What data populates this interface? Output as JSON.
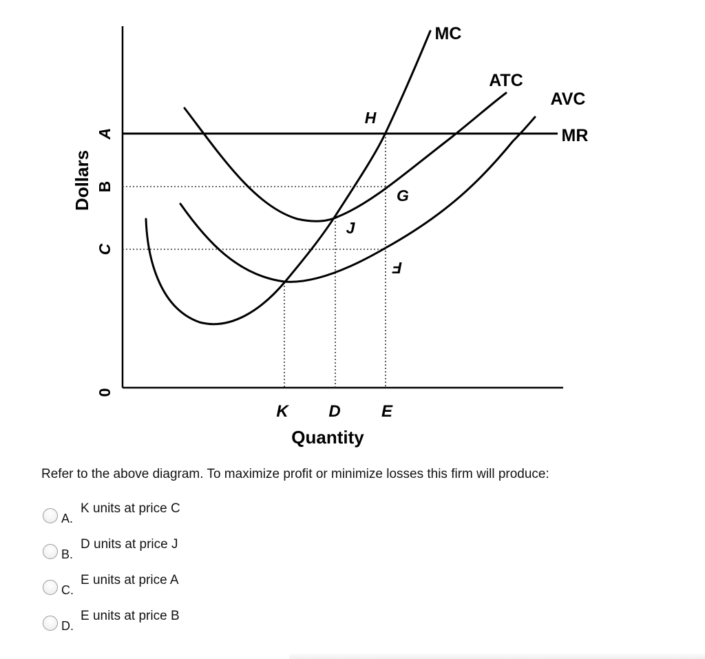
{
  "diagram": {
    "y_axis_label": "Dollars",
    "x_axis_label": "Quantity",
    "price_labels": {
      "a": "A",
      "b": "B",
      "c": "C",
      "zero": "0"
    },
    "quantity_labels": {
      "k": "K",
      "d": "D",
      "e": "E"
    },
    "curve_labels": {
      "mc": "MC",
      "atc": "ATC",
      "avc": "AVC",
      "mr": "MR"
    },
    "point_labels": {
      "h": "H",
      "g": "G",
      "j": "J",
      "f": "F"
    }
  },
  "question": {
    "text": "Refer to the above diagram. To maximize profit or minimize losses this firm will produce:",
    "options": [
      {
        "letter": "A.",
        "text": "K units at price C"
      },
      {
        "letter": "B.",
        "text": "D units at price J"
      },
      {
        "letter": "C.",
        "text": "E units at price A"
      },
      {
        "letter": "D.",
        "text": "E units at price B"
      }
    ]
  }
}
